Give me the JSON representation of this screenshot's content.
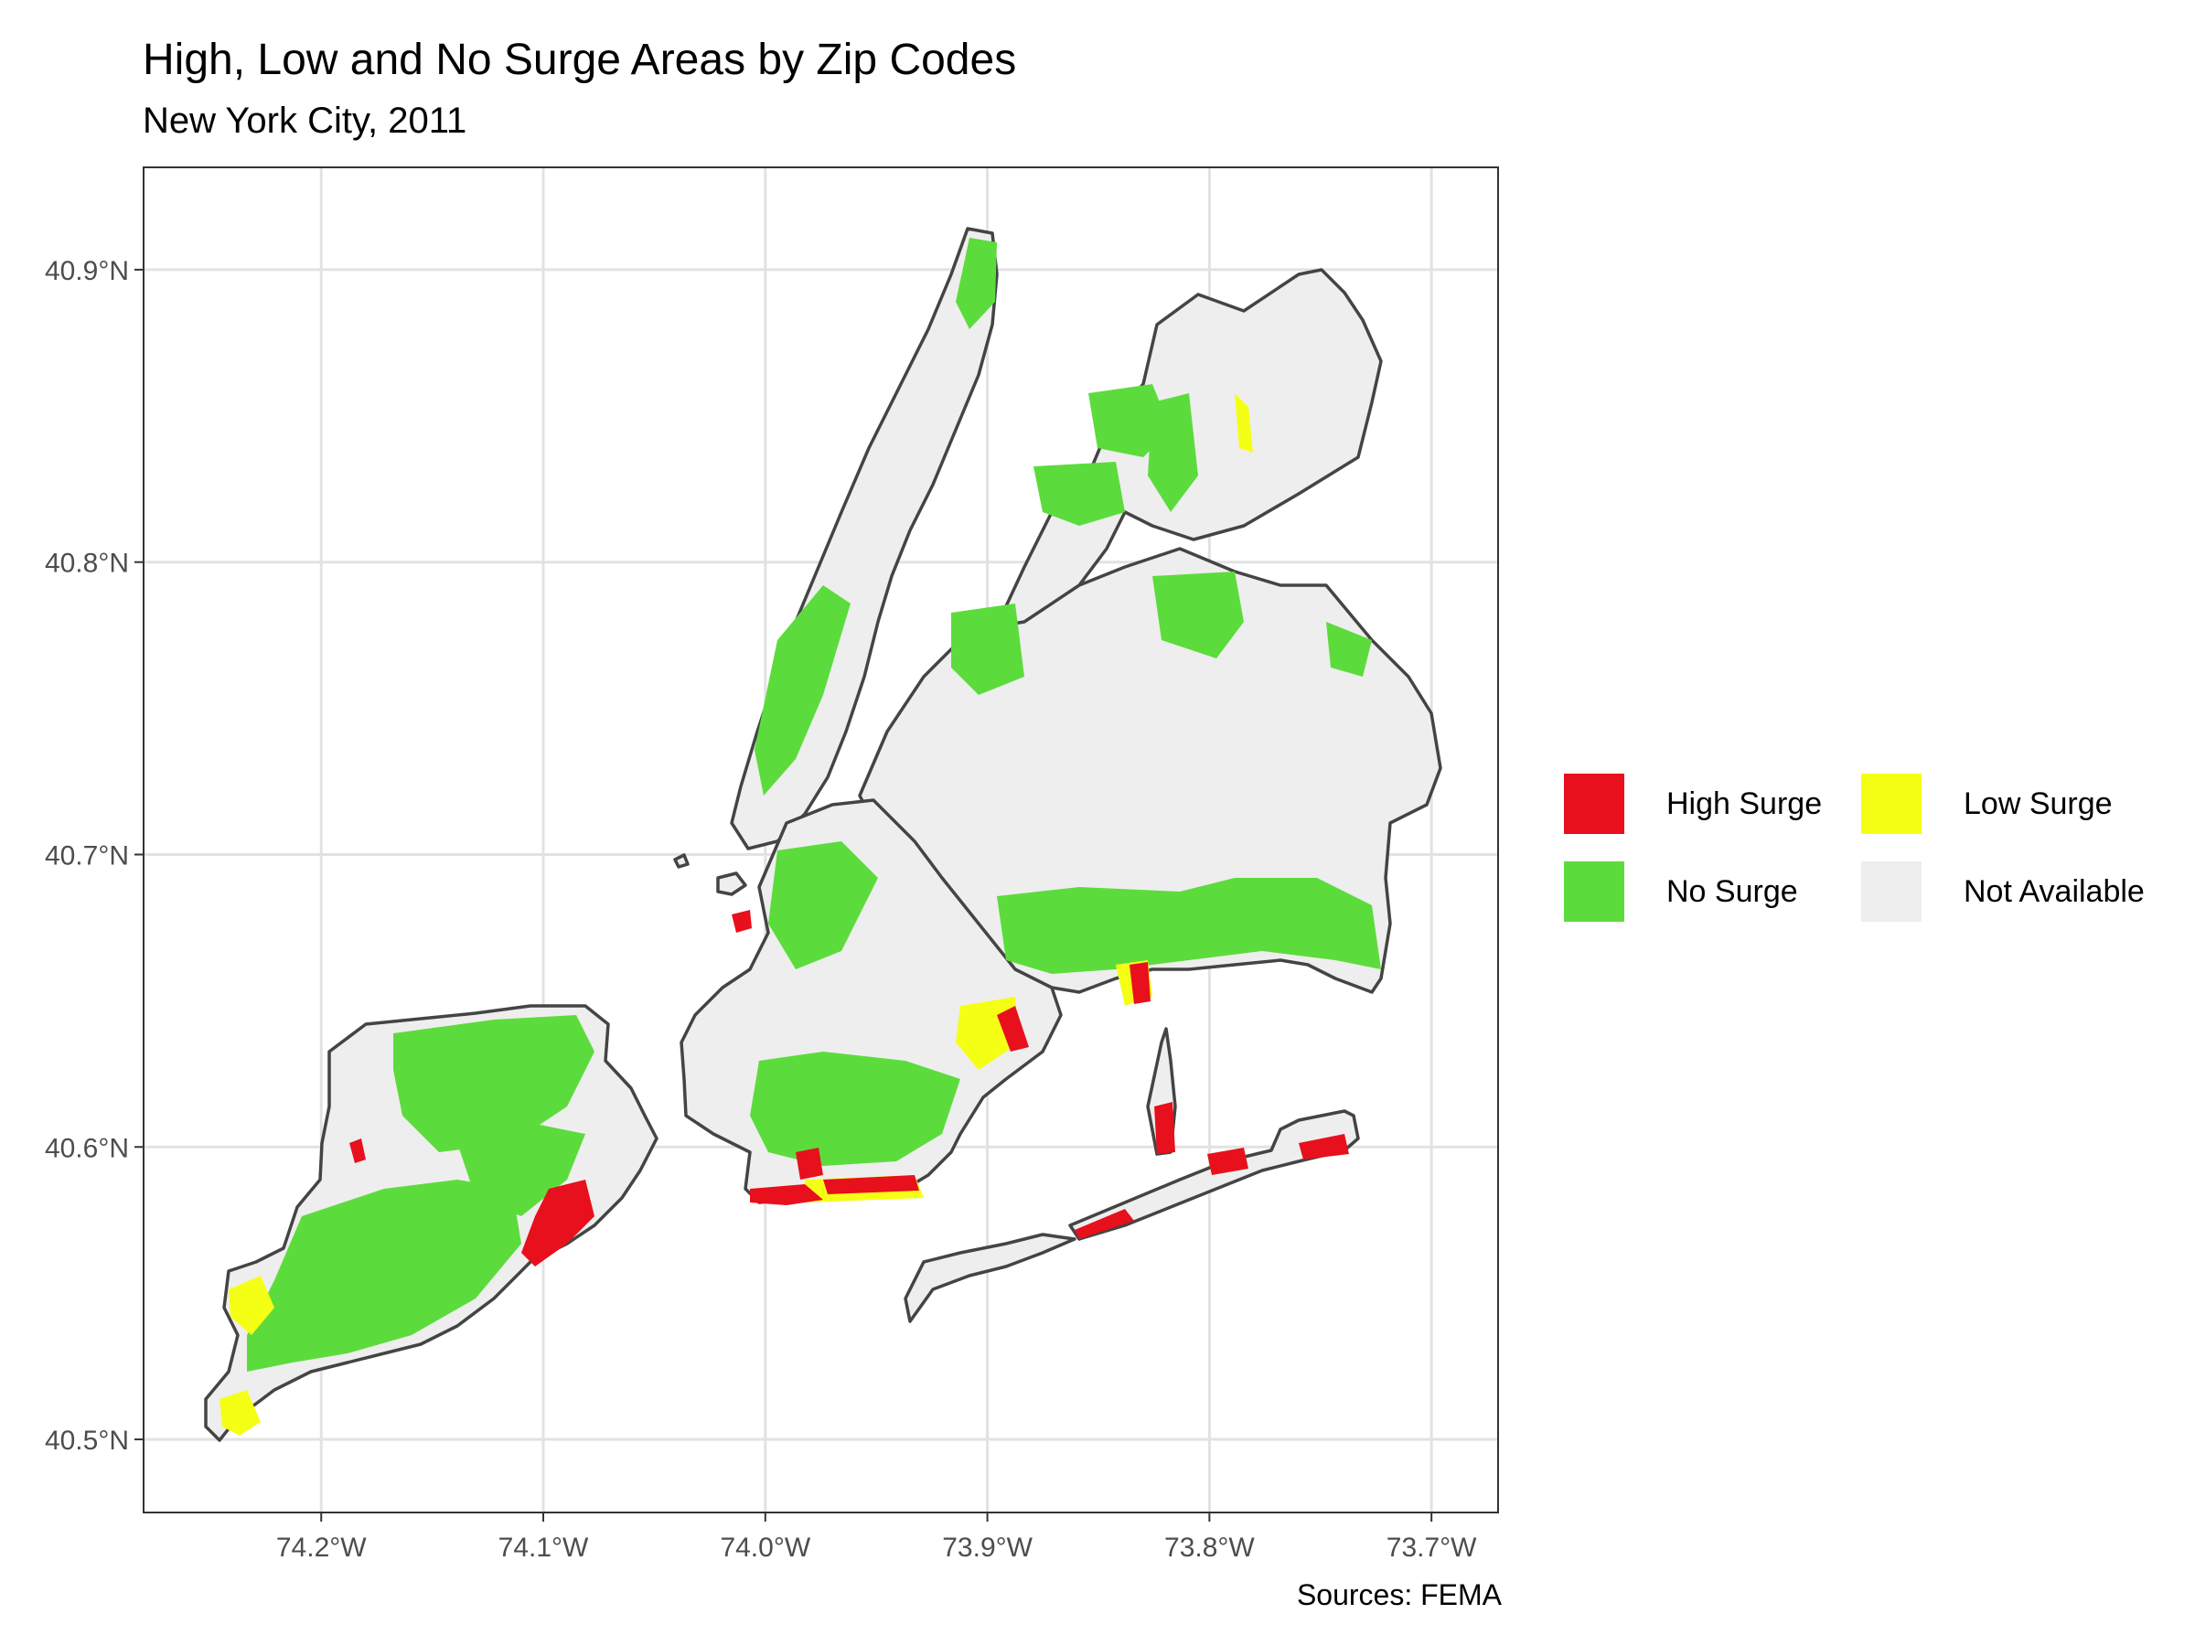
{
  "title": "High, Low and No Surge Areas by Zip Codes",
  "subtitle": "New York City, 2011",
  "caption": "Sources: FEMA",
  "axes": {
    "x_ticks": [
      "74.2°W",
      "74.1°W",
      "74.0°W",
      "73.9°W",
      "73.8°W",
      "73.7°W"
    ],
    "y_ticks": [
      "40.9°N",
      "40.8°N",
      "40.7°N",
      "40.6°N",
      "40.5°N"
    ],
    "x_tick_values": [
      -74.2,
      -74.1,
      -74.0,
      -73.9,
      -73.8,
      -73.7
    ],
    "y_tick_values": [
      40.9,
      40.8,
      40.7,
      40.6,
      40.5
    ],
    "xlim": [
      -74.28,
      -73.67
    ],
    "ylim": [
      40.475,
      40.935
    ]
  },
  "legend": {
    "items": [
      {
        "label": "High Surge",
        "color": "#e8101c"
      },
      {
        "label": "Low Surge",
        "color": "#f5ff14"
      },
      {
        "label": "No Surge",
        "color": "#5cdc3c"
      },
      {
        "label": "Not Available",
        "color": "#eeeeee"
      }
    ]
  },
  "colors": {
    "border": "#444444",
    "grid": "#e2e2e2",
    "panel_border": "#333333"
  }
}
